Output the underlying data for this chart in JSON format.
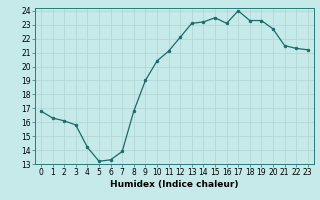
{
  "x": [
    0,
    1,
    2,
    3,
    4,
    5,
    6,
    7,
    8,
    9,
    10,
    11,
    12,
    13,
    14,
    15,
    16,
    17,
    18,
    19,
    20,
    21,
    22,
    23
  ],
  "y": [
    16.8,
    16.3,
    16.1,
    15.8,
    14.2,
    13.2,
    13.3,
    13.9,
    16.8,
    19.0,
    20.4,
    21.1,
    22.1,
    23.1,
    23.2,
    23.5,
    23.1,
    24.0,
    23.3,
    23.3,
    22.7,
    21.5,
    21.3,
    21.2
  ],
  "xlabel": "Humidex (Indice chaleur)",
  "bg_color": "#c6eaea",
  "line_color": "#1a6b6b",
  "marker_color": "#1a6b6b",
  "grid_color": "#b0d4d4",
  "ylim": [
    13,
    24
  ],
  "xlim_min": -0.5,
  "xlim_max": 23.5,
  "yticks": [
    13,
    14,
    15,
    16,
    17,
    18,
    19,
    20,
    21,
    22,
    23,
    24
  ],
  "xticks": [
    0,
    1,
    2,
    3,
    4,
    5,
    6,
    7,
    8,
    9,
    10,
    11,
    12,
    13,
    14,
    15,
    16,
    17,
    18,
    19,
    20,
    21,
    22,
    23
  ],
  "tick_fontsize": 5.5,
  "xlabel_fontsize": 6.5
}
